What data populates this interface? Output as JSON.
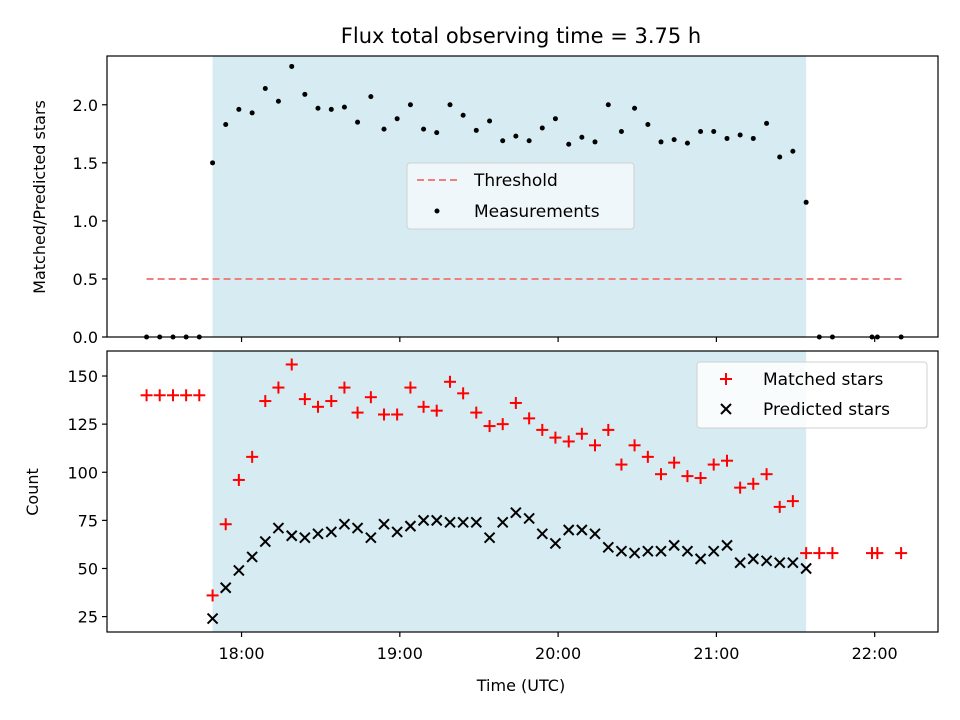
{
  "chart_data": [
    {
      "type": "scatter",
      "title": "Flux total observing time = 3.75 h",
      "xlabel": "",
      "ylabel": "Matched/Predicted stars",
      "xlim": [
        17.15,
        22.4
      ],
      "ylim": [
        0,
        2.42
      ],
      "yticks": [
        0.0,
        0.5,
        1.0,
        1.5,
        2.0
      ],
      "ytick_labels": [
        "0.0",
        "0.5",
        "1.0",
        "1.5",
        "2.0"
      ],
      "shaded_range": [
        17.817,
        21.567
      ],
      "threshold": {
        "value": 0.5,
        "x_range": [
          17.4,
          22.17
        ]
      },
      "legend": [
        "Threshold",
        "Measurements"
      ],
      "series": [
        {
          "name": "Measurements",
          "x": [
            17.4,
            17.483,
            17.567,
            17.65,
            17.733,
            17.817,
            17.9,
            17.983,
            18.067,
            18.15,
            18.233,
            18.317,
            18.4,
            18.483,
            18.567,
            18.65,
            18.733,
            18.817,
            18.9,
            18.983,
            19.067,
            19.15,
            19.233,
            19.317,
            19.4,
            19.483,
            19.567,
            19.65,
            19.733,
            19.817,
            19.9,
            19.983,
            20.067,
            20.15,
            20.233,
            20.317,
            20.4,
            20.483,
            20.567,
            20.65,
            20.733,
            20.817,
            20.9,
            20.983,
            21.067,
            21.15,
            21.233,
            21.317,
            21.4,
            21.483,
            21.567,
            21.65,
            21.733,
            21.983,
            22.017,
            22.167
          ],
          "y": [
            0,
            0,
            0,
            0,
            0,
            1.5,
            1.83,
            1.96,
            1.93,
            2.14,
            2.03,
            2.33,
            2.09,
            1.97,
            1.96,
            1.98,
            1.85,
            2.07,
            1.79,
            1.88,
            2.0,
            1.79,
            1.76,
            2.0,
            1.91,
            1.78,
            1.86,
            1.69,
            1.73,
            1.69,
            1.8,
            1.88,
            1.66,
            1.72,
            1.68,
            2.0,
            1.77,
            1.97,
            1.83,
            1.68,
            1.7,
            1.67,
            1.77,
            1.77,
            1.71,
            1.74,
            1.71,
            1.84,
            1.55,
            1.6,
            1.16,
            0,
            0,
            0,
            0,
            0
          ]
        }
      ]
    },
    {
      "type": "scatter",
      "title": "",
      "xlabel": "Time (UTC)",
      "ylabel": "Count",
      "xlim": [
        17.15,
        22.4
      ],
      "ylim": [
        17,
        163
      ],
      "yticks": [
        25,
        50,
        75,
        100,
        125,
        150
      ],
      "ytick_labels": [
        "25",
        "50",
        "75",
        "100",
        "125",
        "150"
      ],
      "xticks": [
        18,
        19,
        20,
        21,
        22
      ],
      "xtick_labels": [
        "18:00",
        "19:00",
        "20:00",
        "21:00",
        "22:00"
      ],
      "shaded_range": [
        17.817,
        21.567
      ],
      "legend": [
        "Matched stars",
        "Predicted stars"
      ],
      "series": [
        {
          "name": "Matched stars",
          "color": "#ff0000",
          "marker": "+",
          "x": [
            17.4,
            17.483,
            17.567,
            17.65,
            17.733,
            17.817,
            17.9,
            17.983,
            18.067,
            18.15,
            18.233,
            18.317,
            18.4,
            18.483,
            18.567,
            18.65,
            18.733,
            18.817,
            18.9,
            18.983,
            19.067,
            19.15,
            19.233,
            19.317,
            19.4,
            19.483,
            19.567,
            19.65,
            19.733,
            19.817,
            19.9,
            19.983,
            20.067,
            20.15,
            20.233,
            20.317,
            20.4,
            20.483,
            20.567,
            20.65,
            20.733,
            20.817,
            20.9,
            20.983,
            21.067,
            21.15,
            21.233,
            21.317,
            21.4,
            21.483,
            21.567,
            21.65,
            21.733,
            21.983,
            22.017,
            22.167
          ],
          "y": [
            140,
            140,
            140,
            140,
            140,
            36,
            73,
            96,
            108,
            137,
            144,
            156,
            138,
            134,
            137,
            144,
            131,
            139,
            130,
            130,
            144,
            134,
            132,
            147,
            141,
            131,
            124,
            125,
            136,
            128,
            122,
            118,
            116,
            120,
            114,
            122,
            104,
            114,
            108,
            99,
            105,
            98,
            97,
            104,
            106,
            92,
            94,
            99,
            82,
            85,
            58,
            58,
            58,
            58,
            58,
            58
          ]
        },
        {
          "name": "Predicted stars",
          "color": "#000000",
          "marker": "x",
          "x": [
            17.817,
            17.9,
            17.983,
            18.067,
            18.15,
            18.233,
            18.317,
            18.4,
            18.483,
            18.567,
            18.65,
            18.733,
            18.817,
            18.9,
            18.983,
            19.067,
            19.15,
            19.233,
            19.317,
            19.4,
            19.483,
            19.567,
            19.65,
            19.733,
            19.817,
            19.9,
            19.983,
            20.067,
            20.15,
            20.233,
            20.317,
            20.4,
            20.483,
            20.567,
            20.65,
            20.733,
            20.817,
            20.9,
            20.983,
            21.067,
            21.15,
            21.233,
            21.317,
            21.4,
            21.483,
            21.567
          ],
          "y": [
            24,
            40,
            49,
            56,
            64,
            71,
            67,
            66,
            68,
            69,
            73,
            71,
            66,
            73,
            69,
            72,
            75,
            75,
            74,
            74,
            74,
            66,
            74,
            79,
            76,
            68,
            63,
            70,
            70,
            68,
            61,
            59,
            58,
            59,
            59,
            62,
            59,
            55,
            59,
            62,
            53,
            55,
            54,
            53,
            53,
            50
          ]
        }
      ]
    }
  ]
}
